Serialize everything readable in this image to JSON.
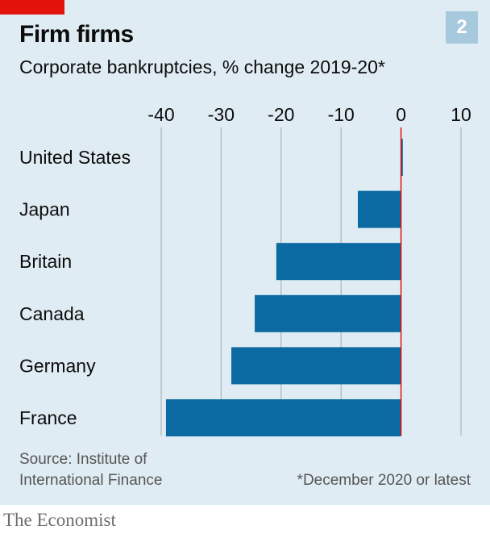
{
  "header": {
    "title": "Firm firms",
    "chart_number": "2",
    "subtitle": "Corporate bankruptcies, % change 2019-20*"
  },
  "footer": {
    "source_line1": "Source: Institute of",
    "source_line2": "International Finance",
    "footnote": "*December 2020 or latest",
    "brand": "The Economist"
  },
  "chart_data": {
    "type": "bar",
    "orientation": "horizontal",
    "title": "Firm firms",
    "subtitle": "Corporate bankruptcies, % change 2019-20*",
    "categories": [
      "United States",
      "Japan",
      "Britain",
      "Canada",
      "Germany",
      "France"
    ],
    "values": [
      0.3,
      -7.2,
      -20.8,
      -24.4,
      -28.3,
      -39.2
    ],
    "xlim": [
      -40,
      10
    ],
    "xticks": [
      -40,
      -30,
      -20,
      -10,
      0,
      10
    ],
    "tick_labels": [
      "-40",
      "-30",
      "-20",
      "-10",
      "0",
      "10"
    ],
    "grid": true,
    "colors": {
      "bar": "#0a6aa1",
      "zero_line": "#e3120b",
      "grid": "#aab4bb",
      "background": "#e0ecf3"
    }
  }
}
